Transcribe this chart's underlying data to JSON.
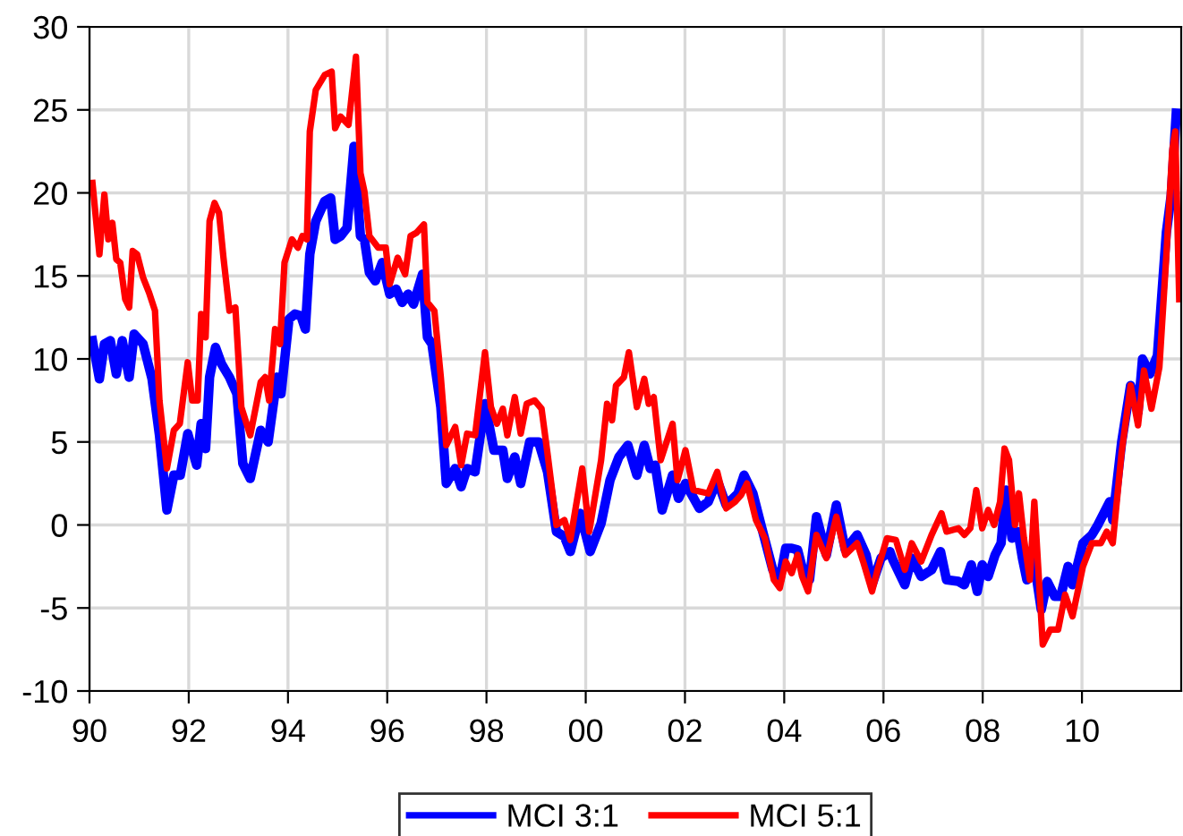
{
  "chart_data": {
    "type": "line",
    "xlim": [
      1990,
      2012
    ],
    "xticks": [
      {
        "value": 1990,
        "label": "90"
      },
      {
        "value": 1992,
        "label": "92"
      },
      {
        "value": 1994,
        "label": "94"
      },
      {
        "value": 1996,
        "label": "96"
      },
      {
        "value": 1998,
        "label": "98"
      },
      {
        "value": 2000,
        "label": "00"
      },
      {
        "value": 2002,
        "label": "02"
      },
      {
        "value": 2004,
        "label": "04"
      },
      {
        "value": 2006,
        "label": "06"
      },
      {
        "value": 2008,
        "label": "08"
      },
      {
        "value": 2010,
        "label": "10"
      }
    ],
    "ylim": [
      -10,
      30
    ],
    "yticks": [
      -10,
      -5,
      0,
      5,
      10,
      15,
      20,
      25,
      30
    ],
    "grid": true,
    "legend": "bottom",
    "marker": "none",
    "line_style": "solid",
    "series": [
      {
        "name": "MCI 3:1",
        "color": "#0000ff",
        "x": [
          1990.06,
          1990.2,
          1990.3,
          1990.42,
          1990.54,
          1990.66,
          1990.8,
          1990.9,
          1991.08,
          1991.26,
          1991.41,
          1991.56,
          1991.7,
          1991.83,
          1991.98,
          1992.16,
          1992.25,
          1992.34,
          1992.42,
          1992.54,
          1992.66,
          1992.82,
          1992.97,
          1993.09,
          1993.24,
          1993.45,
          1993.6,
          1993.78,
          1993.86,
          1994.02,
          1994.14,
          1994.26,
          1994.35,
          1994.44,
          1994.56,
          1994.74,
          1994.86,
          1994.95,
          1995.06,
          1995.19,
          1995.33,
          1995.46,
          1995.54,
          1995.64,
          1995.76,
          1995.9,
          1996.05,
          1996.18,
          1996.3,
          1996.42,
          1996.53,
          1996.71,
          1996.81,
          1996.9,
          1997.08,
          1997.19,
          1997.37,
          1997.49,
          1997.61,
          1997.77,
          1997.97,
          1998.15,
          1998.33,
          1998.42,
          1998.57,
          1998.69,
          1998.87,
          1999.05,
          1999.23,
          1999.41,
          1999.57,
          1999.69,
          1999.89,
          2000.09,
          2000.31,
          2000.49,
          2000.67,
          2000.85,
          2001.03,
          2001.18,
          2001.3,
          2001.4,
          2001.54,
          2001.75,
          2001.87,
          2002.01,
          2002.29,
          2002.47,
          2002.65,
          2002.83,
          2003.07,
          2003.19,
          2003.37,
          2003.55,
          2003.77,
          2003.91,
          2004.03,
          2004.15,
          2004.27,
          2004.39,
          2004.51,
          2004.65,
          2004.85,
          2005.05,
          2005.23,
          2005.47,
          2005.65,
          2005.77,
          2005.95,
          2006.13,
          2006.19,
          2006.43,
          2006.57,
          2006.76,
          2006.97,
          2007.15,
          2007.27,
          2007.51,
          2007.63,
          2007.77,
          2007.89,
          2007.99,
          2008.11,
          2008.25,
          2008.37,
          2008.47,
          2008.59,
          2008.71,
          2008.8,
          2008.89,
          2009.0,
          2009.18,
          2009.3,
          2009.45,
          2009.57,
          2009.72,
          2009.81,
          2010.02,
          2010.2,
          2010.32,
          2010.44,
          2010.56,
          2010.62,
          2010.8,
          2010.98,
          2011.13,
          2011.22,
          2011.37,
          2011.52,
          2011.7,
          2011.8,
          2011.9
        ],
        "values": [
          11.1,
          8.8,
          10.9,
          11.1,
          9.1,
          11.1,
          8.9,
          11.5,
          10.9,
          8.8,
          5.4,
          0.9,
          3.0,
          3.0,
          5.5,
          3.6,
          6.1,
          4.6,
          8.9,
          10.7,
          9.7,
          8.9,
          7.9,
          3.7,
          2.8,
          5.7,
          5.0,
          8.9,
          7.9,
          12.4,
          12.7,
          12.6,
          11.8,
          16.3,
          18.3,
          19.5,
          19.7,
          17.2,
          17.4,
          17.9,
          22.8,
          17.4,
          17.2,
          15.2,
          14.7,
          15.8,
          13.9,
          14.2,
          13.4,
          13.9,
          13.3,
          15.1,
          11.3,
          10.9,
          7.1,
          2.5,
          3.4,
          2.3,
          3.4,
          3.2,
          7.3,
          4.5,
          4.5,
          2.8,
          4.1,
          2.5,
          5.0,
          5.0,
          3.2,
          -0.4,
          -0.7,
          -1.6,
          0.7,
          -1.6,
          0.1,
          2.7,
          4.1,
          4.8,
          3.0,
          4.8,
          3.4,
          3.6,
          0.9,
          3.0,
          1.6,
          2.5,
          1.0,
          1.4,
          2.7,
          1.2,
          1.9,
          3.0,
          1.9,
          -0.2,
          -2.7,
          -3.3,
          -1.4,
          -1.4,
          -1.5,
          -2.9,
          -3.3,
          0.5,
          -1.8,
          1.2,
          -1.5,
          -0.6,
          -1.8,
          -3.6,
          -2.0,
          -1.6,
          -2.1,
          -3.6,
          -2.0,
          -3.1,
          -2.7,
          -1.6,
          -3.3,
          -3.4,
          -3.6,
          -2.4,
          -4.0,
          -2.4,
          -3.1,
          -1.8,
          -1.1,
          2.1,
          -0.8,
          -0.4,
          -2.0,
          -3.3,
          -1.5,
          -5.1,
          -3.4,
          -4.3,
          -4.3,
          -2.5,
          -3.6,
          -1.1,
          -0.6,
          0.0,
          0.7,
          1.4,
          0.3,
          5.0,
          8.4,
          6.8,
          10.0,
          9.1,
          10.2,
          17.6,
          19.9,
          24.8
        ]
      },
      {
        "name": "MCI 5:1",
        "color": "#ff0000",
        "x": [
          1990.06,
          1990.2,
          1990.3,
          1990.38,
          1990.46,
          1990.54,
          1990.62,
          1990.72,
          1990.8,
          1990.87,
          1990.96,
          1991.08,
          1991.2,
          1991.32,
          1991.41,
          1991.56,
          1991.7,
          1991.82,
          1991.98,
          1992.07,
          1992.18,
          1992.25,
          1992.34,
          1992.42,
          1992.52,
          1992.61,
          1992.7,
          1992.82,
          1992.94,
          1993.06,
          1993.24,
          1993.45,
          1993.54,
          1993.62,
          1993.74,
          1993.84,
          1993.93,
          1994.08,
          1994.2,
          1994.29,
          1994.38,
          1994.44,
          1994.56,
          1994.74,
          1994.88,
          1994.95,
          1995.06,
          1995.22,
          1995.37,
          1995.46,
          1995.54,
          1995.64,
          1995.82,
          1995.97,
          1996.05,
          1996.21,
          1996.36,
          1996.47,
          1996.59,
          1996.74,
          1996.81,
          1996.95,
          1997.08,
          1997.19,
          1997.37,
          1997.49,
          1997.61,
          1997.77,
          1997.97,
          1998.09,
          1998.21,
          1998.33,
          1998.42,
          1998.57,
          1998.69,
          1998.81,
          1998.97,
          1999.11,
          1999.23,
          1999.41,
          1999.57,
          1999.69,
          1999.93,
          2000.07,
          2000.31,
          2000.43,
          2000.53,
          2000.61,
          2000.77,
          2000.87,
          2001.03,
          2001.18,
          2001.27,
          2001.37,
          2001.51,
          2001.75,
          2001.85,
          2002.01,
          2002.17,
          2002.47,
          2002.65,
          2002.83,
          2003.01,
          2003.13,
          2003.25,
          2003.43,
          2003.61,
          2003.79,
          2003.91,
          2004.03,
          2004.15,
          2004.27,
          2004.36,
          2004.48,
          2004.65,
          2004.85,
          2005.05,
          2005.23,
          2005.47,
          2005.59,
          2005.77,
          2005.89,
          2006.07,
          2006.25,
          2006.43,
          2006.57,
          2006.76,
          2006.97,
          2007.17,
          2007.27,
          2007.51,
          2007.63,
          2007.75,
          2007.87,
          2007.99,
          2008.11,
          2008.23,
          2008.35,
          2008.44,
          2008.53,
          2008.65,
          2008.73,
          2008.83,
          2008.95,
          2009.04,
          2009.21,
          2009.36,
          2009.52,
          2009.66,
          2009.81,
          2010.02,
          2010.2,
          2010.38,
          2010.5,
          2010.62,
          2010.8,
          2010.98,
          2011.13,
          2011.25,
          2011.4,
          2011.56,
          2011.7,
          2011.82,
          2011.88,
          2011.96
        ],
        "values": [
          20.6,
          16.3,
          19.9,
          17.2,
          18.2,
          16.0,
          15.8,
          13.6,
          13.1,
          16.5,
          16.3,
          14.9,
          14.0,
          12.9,
          7.5,
          3.4,
          5.7,
          6.1,
          9.8,
          7.5,
          7.5,
          12.7,
          11.3,
          18.3,
          19.4,
          18.8,
          16.1,
          12.9,
          13.1,
          7.1,
          5.4,
          8.6,
          8.9,
          7.5,
          11.8,
          10.9,
          15.8,
          17.2,
          16.7,
          17.4,
          17.2,
          23.7,
          26.2,
          27.1,
          27.3,
          23.9,
          24.6,
          24.1,
          28.2,
          21.2,
          20.1,
          17.4,
          16.7,
          16.7,
          14.5,
          16.1,
          15.1,
          17.4,
          17.6,
          18.1,
          13.4,
          12.9,
          8.9,
          4.8,
          5.9,
          3.6,
          5.5,
          5.4,
          10.4,
          7.1,
          6.1,
          7.0,
          5.4,
          7.7,
          5.5,
          7.3,
          7.5,
          7.0,
          4.3,
          0.0,
          0.3,
          -0.9,
          3.4,
          -0.4,
          3.9,
          7.3,
          6.3,
          8.4,
          8.9,
          10.4,
          7.1,
          8.8,
          7.3,
          7.7,
          3.9,
          6.1,
          2.7,
          4.5,
          2.1,
          1.9,
          3.2,
          1.0,
          1.4,
          1.8,
          2.5,
          0.3,
          -0.8,
          -3.3,
          -3.8,
          -2.2,
          -2.9,
          -1.8,
          -3.1,
          -4.0,
          -0.6,
          -2.0,
          0.5,
          -1.8,
          -1.1,
          -2.2,
          -4.0,
          -2.6,
          -0.8,
          -0.9,
          -2.7,
          -1.1,
          -2.2,
          -0.6,
          0.7,
          -0.4,
          -0.2,
          -0.6,
          -0.2,
          2.1,
          -0.2,
          0.9,
          0.0,
          1.4,
          4.6,
          3.9,
          0.0,
          1.9,
          -0.8,
          -3.3,
          1.4,
          -7.2,
          -6.3,
          -6.3,
          -4.2,
          -5.5,
          -2.5,
          -1.1,
          -1.1,
          -0.4,
          -1.1,
          4.4,
          8.4,
          6.0,
          9.3,
          7.0,
          9.5,
          16.2,
          22.6,
          23.7,
          13.6
        ]
      }
    ]
  }
}
